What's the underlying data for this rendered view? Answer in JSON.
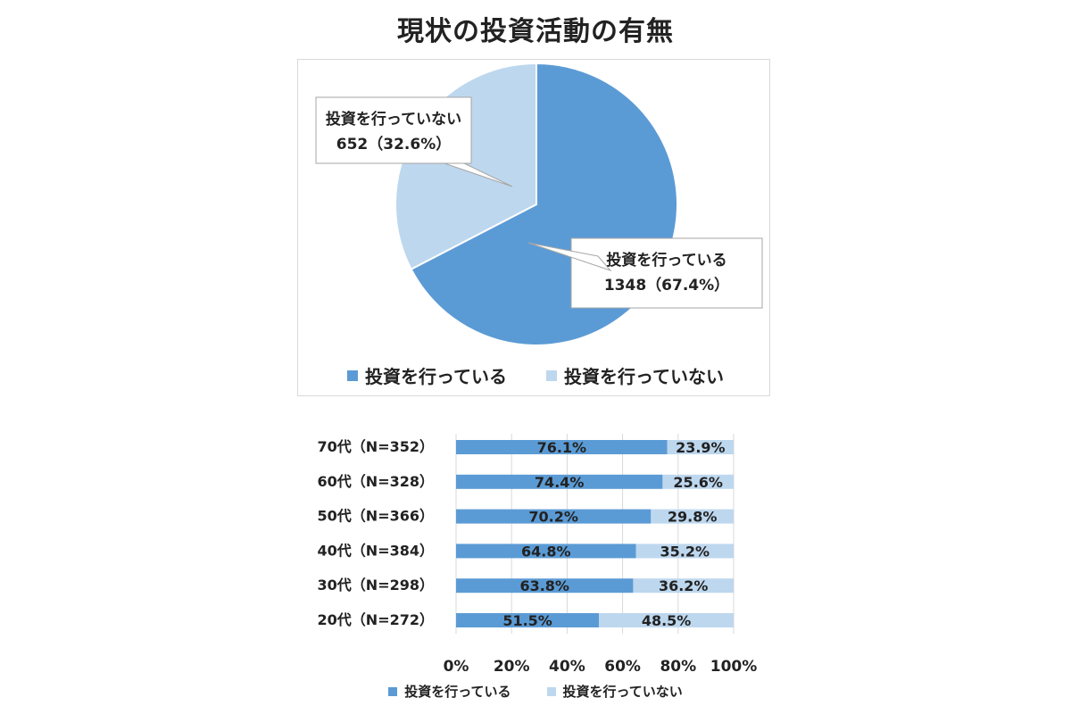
{
  "title": "現状の投資活動の有無",
  "colors": {
    "invest": "#5b9bd5",
    "not_invest": "#bdd7ee"
  },
  "legend": {
    "invest": "投資を行っている",
    "not_invest": "投資を行っていない"
  },
  "chart_data": [
    {
      "type": "pie",
      "slices": [
        {
          "label": "投資を行っている",
          "count": 1348,
          "percent": 67.4,
          "value_label": "1348（67.4%）"
        },
        {
          "label": "投資を行っていない",
          "count": 652,
          "percent": 32.6,
          "value_label": "652（32.6%）"
        }
      ],
      "legend_position": "bottom"
    },
    {
      "type": "bar",
      "orientation": "horizontal",
      "stacked": true,
      "categories": [
        "70代（N=352）",
        "60代（N=328）",
        "50代（N=366）",
        "40代（N=384）",
        "30代（N=298）",
        "20代（N=272）"
      ],
      "series": [
        {
          "name": "投資を行っている",
          "values": [
            76.1,
            74.4,
            70.2,
            64.8,
            63.8,
            51.5
          ]
        },
        {
          "name": "投資を行っていない",
          "values": [
            23.9,
            25.6,
            29.8,
            35.2,
            36.2,
            48.5
          ]
        }
      ],
      "xlim": [
        0,
        100
      ],
      "xticks": [
        "0%",
        "20%",
        "40%",
        "60%",
        "80%",
        "100%"
      ],
      "grid": true,
      "legend_position": "bottom"
    }
  ]
}
